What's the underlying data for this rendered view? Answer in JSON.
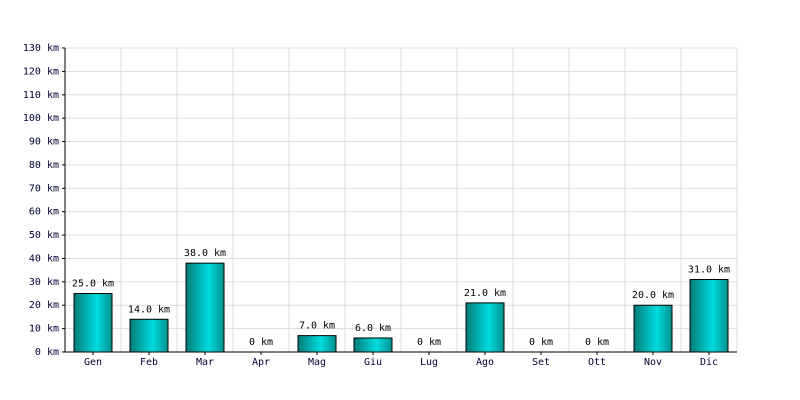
{
  "chart_data": {
    "type": "bar",
    "categories": [
      "Gen",
      "Feb",
      "Mar",
      "Apr",
      "Mag",
      "Giu",
      "Lug",
      "Ago",
      "Set",
      "Ott",
      "Nov",
      "Dic"
    ],
    "values": [
      25,
      14,
      38,
      0,
      7,
      6,
      0,
      21,
      0,
      0,
      20,
      31
    ],
    "value_labels": [
      "25.0 km",
      "14.0 km",
      "38.0 km",
      "0 km",
      "7.0 km",
      "6.0 km",
      "0 km",
      "21.0 km",
      "0 km",
      "0 km",
      "20.0 km",
      "31.0 km"
    ],
    "color": "#00dddd",
    "ylim": [
      0,
      130
    ],
    "yticks": [
      {
        "value": 0,
        "label": "0 km"
      },
      {
        "value": 10,
        "label": "10 km"
      },
      {
        "value": 20,
        "label": "20 km"
      },
      {
        "value": 30,
        "label": "30 km"
      },
      {
        "value": 40,
        "label": "40 km"
      },
      {
        "value": 50,
        "label": "50 km"
      },
      {
        "value": 60,
        "label": "60 km"
      },
      {
        "value": 70,
        "label": "70 km"
      },
      {
        "value": 80,
        "label": "80 km"
      },
      {
        "value": 90,
        "label": "90 km"
      },
      {
        "value": 100,
        "label": "100 km"
      },
      {
        "value": 110,
        "label": "110 km"
      },
      {
        "value": 120,
        "label": "120 km"
      },
      {
        "value": 130,
        "label": "130 km"
      }
    ],
    "grid": true
  }
}
